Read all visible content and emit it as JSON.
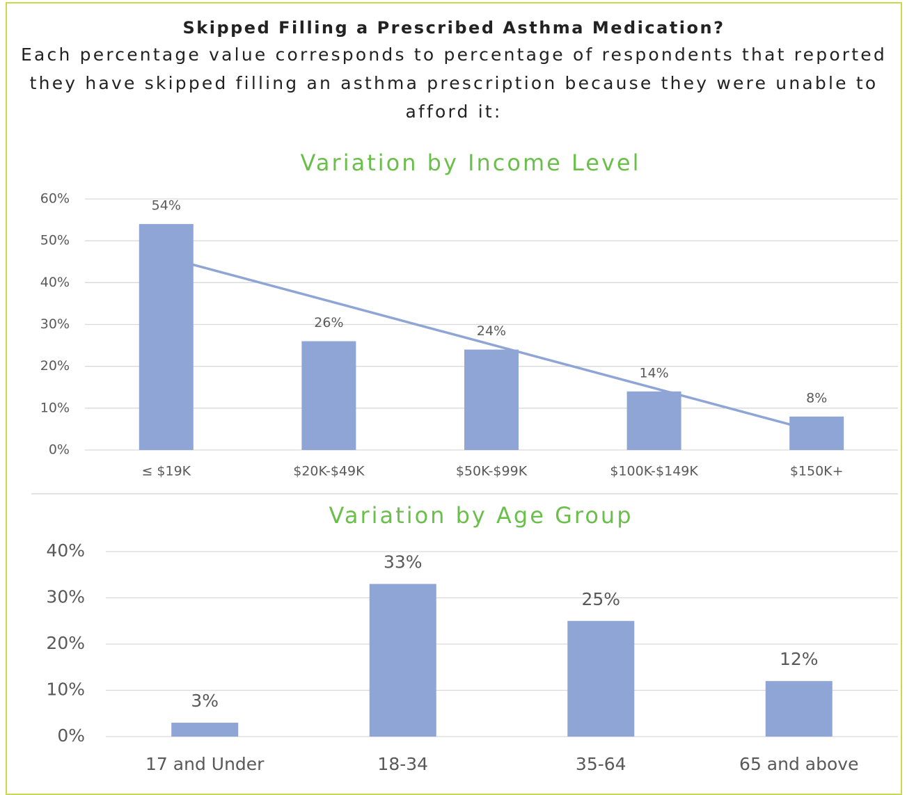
{
  "header": {
    "title": "Skipped Filling a Prescribed Asthma Medication?",
    "subtitle": "Each percentage value corresponds to percentage of respondents that reported they have skipped filling an asthma prescription because they were unable to afford it:"
  },
  "chart_data": [
    {
      "type": "bar",
      "title": "Variation by Income Level",
      "categories": [
        "≤ $19K",
        "$20K-$49K",
        "$50K-$99K",
        "$100K-$149K",
        "$150K+"
      ],
      "values": [
        54,
        26,
        24,
        14,
        8
      ],
      "value_labels": [
        "54%",
        "26%",
        "24%",
        "14%",
        "8%"
      ],
      "color": "#8fa5d6",
      "trendline": "linear",
      "trendline_color": "#8fa5d6",
      "ylim": [
        0,
        60
      ],
      "yticks": [
        {
          "value": 0,
          "label": "0%"
        },
        {
          "value": 10,
          "label": "10%"
        },
        {
          "value": 20,
          "label": "20%"
        },
        {
          "value": 30,
          "label": "30%"
        },
        {
          "value": 40,
          "label": "40%"
        },
        {
          "value": 50,
          "label": "50%"
        },
        {
          "value": 60,
          "label": "60%"
        }
      ],
      "grid": true
    },
    {
      "type": "bar",
      "title": "Variation by Age Group",
      "categories": [
        "17 and Under",
        "18-34",
        "35-64",
        "65 and above"
      ],
      "values": [
        3,
        33,
        25,
        12
      ],
      "value_labels": [
        "3%",
        "33%",
        "25%",
        "12%"
      ],
      "color": "#8fa5d6",
      "ylim": [
        0,
        40
      ],
      "yticks": [
        {
          "value": 0,
          "label": "0%"
        },
        {
          "value": 10,
          "label": "10%"
        },
        {
          "value": 20,
          "label": "20%"
        },
        {
          "value": 30,
          "label": "30%"
        },
        {
          "value": 40,
          "label": "40%"
        }
      ],
      "grid": true
    }
  ]
}
